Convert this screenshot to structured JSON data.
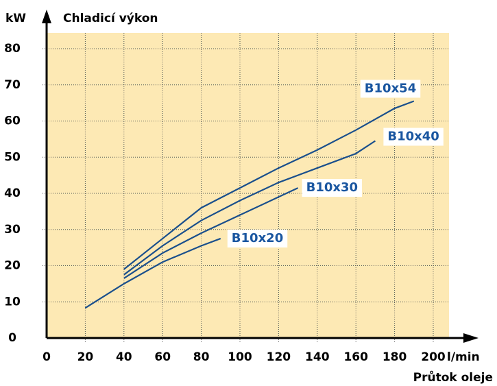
{
  "chart_data": {
    "type": "line",
    "y_label": "kW",
    "title": "Chladicí výkon",
    "x_unit": "l/min",
    "x_label": "Průtok oleje",
    "xlim": [
      0,
      200
    ],
    "xticks": [
      0,
      20,
      40,
      60,
      80,
      100,
      120,
      140,
      160,
      180,
      200
    ],
    "ylim": [
      0,
      80
    ],
    "yticks": [
      0,
      10,
      20,
      30,
      40,
      50,
      60,
      70,
      80
    ],
    "grid": true,
    "background": "#fde9b4",
    "series": [
      {
        "name": "B10x20",
        "color": "#1a4f8c",
        "x": [
          20,
          40,
          60,
          80,
          90
        ],
        "values": [
          8.3,
          15,
          21,
          25.5,
          27.5
        ]
      },
      {
        "name": "B10x30",
        "color": "#1a4f8c",
        "x": [
          40,
          60,
          80,
          100,
          120,
          130
        ],
        "values": [
          16.5,
          23.5,
          29,
          34,
          39,
          41.5
        ]
      },
      {
        "name": "B10x40",
        "color": "#1a4f8c",
        "x": [
          40,
          60,
          80,
          100,
          120,
          140,
          160,
          170
        ],
        "values": [
          17.5,
          25.5,
          32.5,
          38,
          43,
          47,
          51,
          54.5
        ]
      },
      {
        "name": "B10x54",
        "color": "#1a4f8c",
        "x": [
          40,
          60,
          80,
          100,
          120,
          140,
          160,
          180,
          190
        ],
        "values": [
          19,
          27.5,
          36,
          41.5,
          47,
          52,
          57.5,
          63.5,
          65.5
        ]
      }
    ]
  }
}
